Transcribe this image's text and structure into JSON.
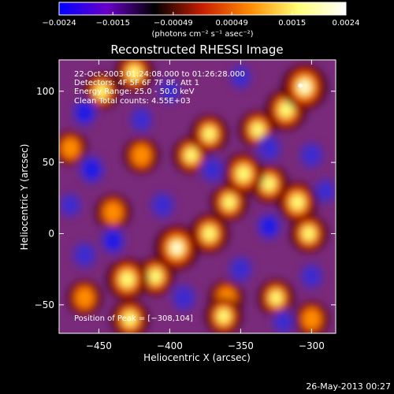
{
  "chart_data": {
    "type": "heatmap",
    "title": "Reconstructed RHESSI Image",
    "xlabel": "Heliocentric X (arcsec)",
    "ylabel": "Heliocentric Y (arcsec)",
    "xlim": [
      -478,
      -283
    ],
    "ylim": [
      -70,
      122
    ],
    "x_ticks": [
      -450,
      -400,
      -350,
      -300
    ],
    "x_tick_labels": [
      "−450",
      "−400",
      "−350",
      "−300"
    ],
    "y_ticks": [
      -50,
      0,
      50,
      100
    ],
    "y_tick_labels": [
      "−50",
      "0",
      "50",
      "100"
    ],
    "annotations": [
      "22-Oct-2003 01:24:08.000 to 01:26:28.000",
      "Detectors: 4F 5F 6F 7F 8F, Att 1",
      "Energy Range: 25.0 - 50.0 keV",
      "Clean     Total counts: 4.55E+03",
      "Position of Peak = [−308,104]"
    ],
    "peak_position": [
      -308,
      104
    ],
    "colorbar": {
      "range": [
        -0.0024,
        0.0024
      ],
      "ticks": [
        -0.0024,
        -0.0015,
        -0.00049,
        0.00049,
        0.0015,
        0.0024
      ],
      "tick_labels": [
        "−0.0024",
        "−0.0015",
        "−0.00049",
        "0.00049",
        "0.0015",
        "0.0024"
      ],
      "unit_label": "(photons cm⁻² s⁻¹ asec⁻²)",
      "colors": [
        "#0000ff",
        "#6a00c8",
        "#000000",
        "#c81e00",
        "#ff8c00",
        "#ffff78",
        "#ffffff"
      ]
    },
    "blobs": [
      {
        "x": -305,
        "y": 103,
        "amp": 1.0
      },
      {
        "x": -318,
        "y": 87,
        "amp": 0.75
      },
      {
        "x": -338,
        "y": 73,
        "amp": 0.55
      },
      {
        "x": -372,
        "y": 70,
        "amp": 0.55
      },
      {
        "x": -385,
        "y": 55,
        "amp": 0.5
      },
      {
        "x": -348,
        "y": 42,
        "amp": 0.75
      },
      {
        "x": -330,
        "y": 35,
        "amp": 0.6
      },
      {
        "x": -310,
        "y": 22,
        "amp": 0.7
      },
      {
        "x": -302,
        "y": 0,
        "amp": 0.55
      },
      {
        "x": -358,
        "y": 22,
        "amp": 0.55
      },
      {
        "x": -372,
        "y": 0,
        "amp": 0.65
      },
      {
        "x": -395,
        "y": -10,
        "amp": 0.95
      },
      {
        "x": -410,
        "y": -30,
        "amp": 0.6
      },
      {
        "x": -430,
        "y": -32,
        "amp": 0.8
      },
      {
        "x": -428,
        "y": -60,
        "amp": 0.6
      },
      {
        "x": -448,
        "y": 100,
        "amp": 0.5
      },
      {
        "x": -420,
        "y": 55,
        "amp": 0.45
      },
      {
        "x": -440,
        "y": 15,
        "amp": 0.45
      },
      {
        "x": -325,
        "y": -45,
        "amp": 0.5
      },
      {
        "x": -362,
        "y": -58,
        "amp": 0.55
      },
      {
        "x": -470,
        "y": 60,
        "amp": 0.35
      },
      {
        "x": -300,
        "y": -60,
        "amp": 0.4
      },
      {
        "x": -460,
        "y": -45,
        "amp": 0.4
      },
      {
        "x": -425,
        "y": 113,
        "amp": 0.6
      },
      {
        "x": -360,
        "y": -45,
        "amp": 0.4
      },
      {
        "x": -460,
        "y": 85,
        "amp": -0.9
      },
      {
        "x": -455,
        "y": 45,
        "amp": -1.0
      },
      {
        "x": -420,
        "y": 80,
        "amp": -0.7
      },
      {
        "x": -405,
        "y": 20,
        "amp": -0.85
      },
      {
        "x": -440,
        "y": -5,
        "amp": -0.9
      },
      {
        "x": -460,
        "y": -15,
        "amp": -0.8
      },
      {
        "x": -370,
        "y": 45,
        "amp": -0.8
      },
      {
        "x": -330,
        "y": 60,
        "amp": -0.85
      },
      {
        "x": -300,
        "y": 55,
        "amp": -0.8
      },
      {
        "x": -330,
        "y": 5,
        "amp": -0.9
      },
      {
        "x": -300,
        "y": -30,
        "amp": -0.7
      },
      {
        "x": -350,
        "y": -25,
        "amp": -0.8
      },
      {
        "x": -390,
        "y": -45,
        "amp": -0.85
      },
      {
        "x": -400,
        "y": 100,
        "amp": -0.6
      },
      {
        "x": -350,
        "y": 110,
        "amp": -0.6
      },
      {
        "x": -290,
        "y": 30,
        "amp": -0.6
      },
      {
        "x": -470,
        "y": 20,
        "amp": -0.6
      },
      {
        "x": -320,
        "y": -62,
        "amp": -0.6
      }
    ]
  },
  "footer": {
    "timestamp": "26-May-2013 00:27"
  }
}
